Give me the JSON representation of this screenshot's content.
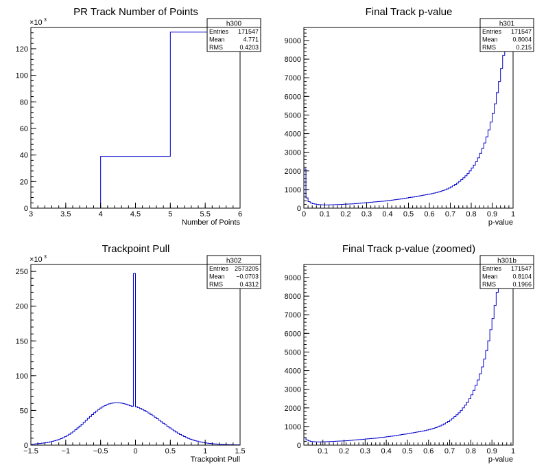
{
  "canvas": {
    "background": "#ffffff",
    "line_color": "#0000cc",
    "frame_color": "#000000"
  },
  "chart_data": [
    {
      "type": "histogram",
      "title": "PR Track Number of Points",
      "xlabel": "Number of Points",
      "ylabel": "",
      "xlim": [
        3,
        6
      ],
      "ylim": [
        0,
        136
      ],
      "y_multiplier_label": "×10",
      "y_multiplier_exponent": "3",
      "xticks": [
        "3",
        "3.5",
        "4",
        "4.5",
        "5",
        "5.5",
        "6"
      ],
      "yticks": [
        "0",
        "20",
        "40",
        "60",
        "80",
        "100",
        "120"
      ],
      "stats": {
        "name": "h300",
        "rows": [
          [
            "Entries",
            "171547"
          ],
          [
            "Mean",
            "4.771"
          ],
          [
            "RMS",
            "0.4203"
          ]
        ]
      },
      "bins": {
        "edges_from": 3,
        "edges_to": 6,
        "count": 3,
        "values": [
          0,
          39,
          132.5
        ]
      }
    },
    {
      "type": "histogram",
      "title": "Final Track p-value",
      "xlabel": "p-value",
      "ylabel": "",
      "xlim": [
        0,
        1
      ],
      "ylim": [
        0,
        9700
      ],
      "xticks": [
        "0",
        "0.1",
        "0.2",
        "0.3",
        "0.4",
        "0.5",
        "0.6",
        "0.7",
        "0.8",
        "0.9",
        "1"
      ],
      "yticks": [
        "0",
        "1000",
        "2000",
        "3000",
        "4000",
        "5000",
        "6000",
        "7000",
        "8000",
        "9000"
      ],
      "stats": {
        "name": "h301",
        "rows": [
          [
            "Entries",
            "171547"
          ],
          [
            "Mean",
            "0.8004"
          ],
          [
            "RMS",
            "0.215"
          ]
        ]
      },
      "bins": {
        "edges_from": 0,
        "edges_to": 1,
        "count": 100,
        "values": [
          2100,
          550,
          350,
          280,
          240,
          220,
          200,
          190,
          180,
          175,
          175,
          175,
          180,
          180,
          185,
          190,
          195,
          200,
          205,
          210,
          215,
          220,
          225,
          230,
          240,
          250,
          260,
          270,
          280,
          290,
          300,
          310,
          320,
          330,
          340,
          350,
          360,
          370,
          380,
          395,
          410,
          420,
          435,
          450,
          465,
          480,
          495,
          510,
          530,
          550,
          570,
          585,
          600,
          620,
          640,
          660,
          680,
          700,
          720,
          740,
          760,
          785,
          810,
          840,
          870,
          900,
          940,
          980,
          1030,
          1080,
          1140,
          1200,
          1270,
          1350,
          1440,
          1530,
          1630,
          1740,
          1860,
          2000,
          2150,
          2310,
          2490,
          2700,
          2940,
          3210,
          3500,
          3830,
          4200,
          4620,
          5080,
          5600,
          6200,
          6800,
          7500,
          8200,
          9000,
          9200,
          9300,
          9100
        ]
      }
    },
    {
      "type": "histogram",
      "title": "Trackpoint Pull",
      "xlabel": "Trackpoint Pull",
      "ylabel": "",
      "xlim": [
        -1.5,
        1.5
      ],
      "ylim": [
        0,
        260
      ],
      "y_multiplier_label": "×10",
      "y_multiplier_exponent": "3",
      "xticks": [
        "−1.5",
        "−1",
        "−0.5",
        "0",
        "0.5",
        "1",
        "1.5"
      ],
      "yticks": [
        "0",
        "50",
        "100",
        "150",
        "200",
        "250"
      ],
      "stats": {
        "name": "h302",
        "rows": [
          [
            "Entries",
            "2573205"
          ],
          [
            "Mean",
            "−0.0703"
          ],
          [
            "RMS",
            "0.4312"
          ]
        ]
      },
      "bins": {
        "edges_from": -1.5,
        "edges_to": 1.5,
        "count": 100,
        "values": [
          1.2,
          1.5,
          1.8,
          2.1,
          2.4,
          2.8,
          3.2,
          3.7,
          4.2,
          4.8,
          5.5,
          6.3,
          7.2,
          8.2,
          9.4,
          10.7,
          12.2,
          13.9,
          15.7,
          17.7,
          19.9,
          22.3,
          24.8,
          27.4,
          30.1,
          32.9,
          35.7,
          38.5,
          41.3,
          44.0,
          46.6,
          49.0,
          51.3,
          53.4,
          55.3,
          56.9,
          58.3,
          59.4,
          60.2,
          60.7,
          61.0,
          61.0,
          60.8,
          60.4,
          59.7,
          58.9,
          57.9,
          56.7,
          56.0,
          247,
          55.2,
          54.0,
          52.7,
          51.3,
          49.7,
          48.0,
          46.2,
          44.3,
          42.3,
          40.2,
          38.0,
          35.8,
          33.6,
          31.4,
          29.2,
          27.0,
          24.9,
          22.8,
          20.8,
          18.9,
          17.1,
          15.4,
          13.8,
          12.3,
          10.9,
          9.7,
          8.5,
          7.5,
          6.6,
          5.8,
          5.0,
          4.4,
          3.8,
          3.3,
          2.9,
          2.5,
          2.2,
          1.9,
          1.7,
          1.5,
          1.3,
          1.1,
          1.0,
          0.9,
          0.8,
          0.7,
          0.6,
          0.5,
          0.5,
          0.4
        ]
      }
    },
    {
      "type": "histogram",
      "title": "Final Track p-value (zoomed)",
      "xlabel": "p-value",
      "ylabel": "",
      "xlim": [
        0.01,
        1
      ],
      "ylim": [
        0,
        9700
      ],
      "xticks": [
        "0.1",
        "0.2",
        "0.3",
        "0.4",
        "0.5",
        "0.6",
        "0.7",
        "0.8",
        "0.9",
        "1"
      ],
      "xtick_values": [
        0.1,
        0.2,
        0.3,
        0.4,
        0.5,
        0.6,
        0.7,
        0.8,
        0.9,
        1.0
      ],
      "yticks": [
        "0",
        "1000",
        "2000",
        "3000",
        "4000",
        "5000",
        "6000",
        "7000",
        "8000",
        "9000"
      ],
      "stats": {
        "name": "h301b",
        "rows": [
          [
            "Entries",
            "171547"
          ],
          [
            "Mean",
            "0.8104"
          ],
          [
            "RMS",
            "0.1966"
          ]
        ]
      },
      "bins": {
        "edges_from": 0.01,
        "edges_to": 1,
        "count": 99,
        "values": [
          400,
          280,
          230,
          200,
          185,
          180,
          175,
          175,
          178,
          180,
          185,
          190,
          195,
          200,
          205,
          210,
          215,
          220,
          225,
          230,
          240,
          250,
          260,
          270,
          280,
          290,
          300,
          310,
          320,
          330,
          340,
          350,
          360,
          370,
          380,
          395,
          410,
          420,
          435,
          450,
          465,
          480,
          495,
          510,
          530,
          550,
          570,
          585,
          600,
          620,
          640,
          660,
          680,
          700,
          720,
          740,
          760,
          785,
          810,
          840,
          870,
          900,
          940,
          980,
          1030,
          1080,
          1140,
          1200,
          1270,
          1350,
          1440,
          1530,
          1630,
          1740,
          1860,
          2000,
          2150,
          2310,
          2490,
          2700,
          2940,
          3210,
          3500,
          3830,
          4200,
          4620,
          5080,
          5600,
          6200,
          6800,
          7500,
          8200,
          9000,
          9200,
          9300,
          9100,
          9400,
          9300,
          9200
        ]
      }
    }
  ]
}
